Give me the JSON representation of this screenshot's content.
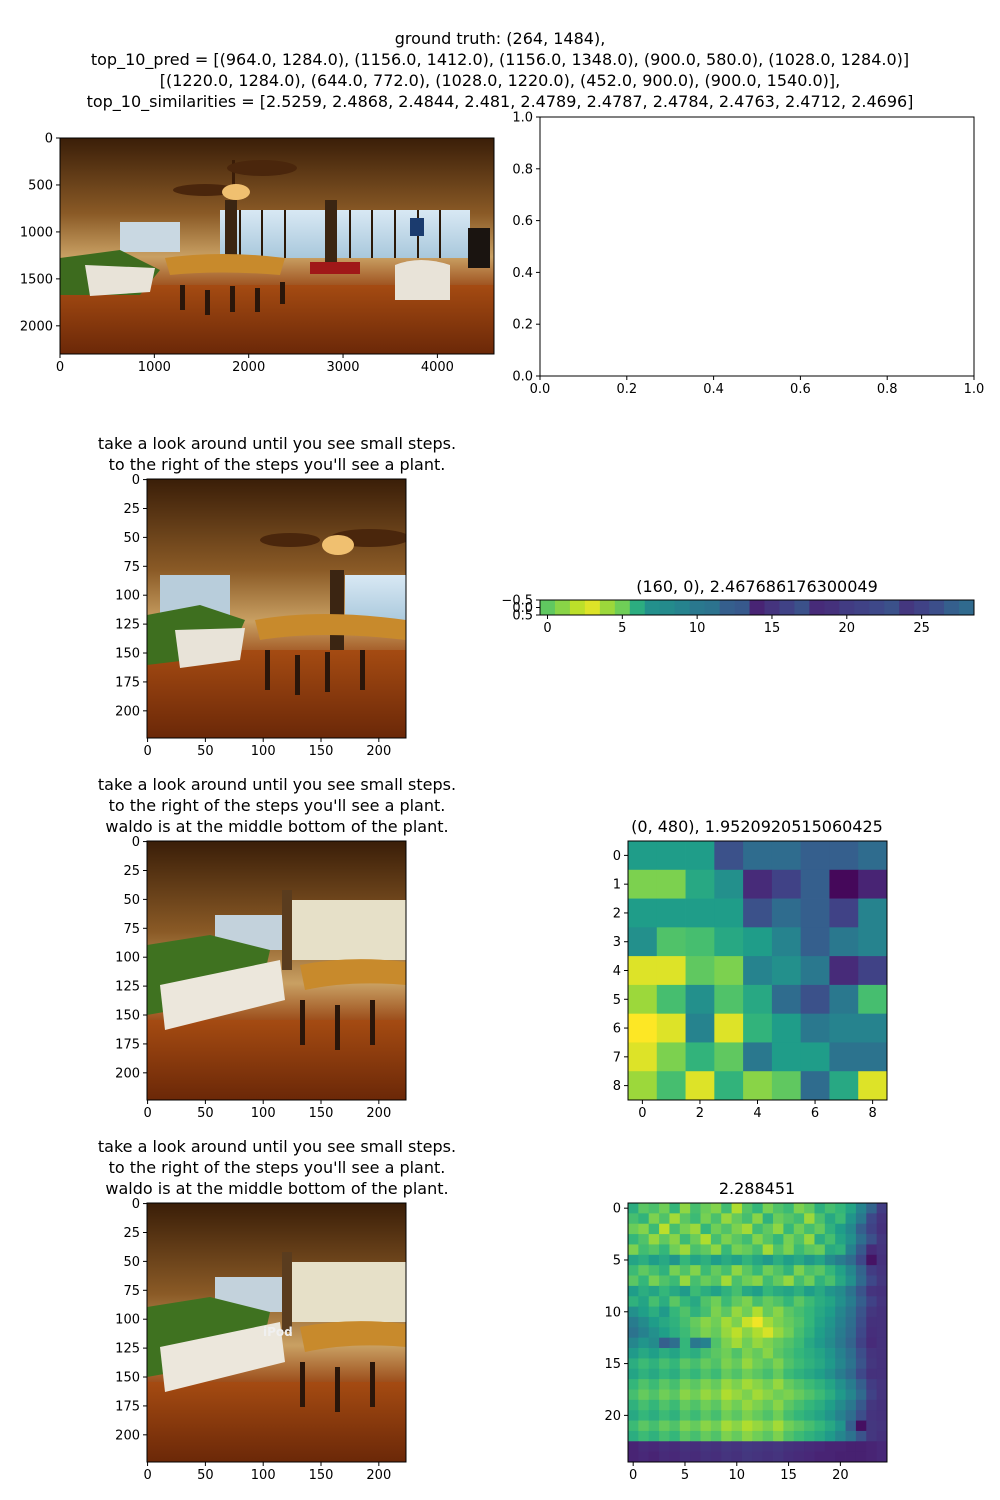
{
  "figure_title": {
    "line1": "ground truth: (264, 1484),",
    "line2": "top_10_pred = [(964.0, 1284.0), (1156.0, 1412.0), (1156.0, 1348.0), (900.0, 580.0), (1028.0, 1284.0)]",
    "line3": "[(1220.0, 1284.0), (644.0, 772.0), (1028.0, 1220.0), (452.0, 900.0), (900.0, 1540.0)],",
    "line4": "top_10_similarities = [2.5259, 2.4868, 2.4844, 2.481, 2.4789, 2.4787, 2.4784, 2.4763, 2.4712, 2.4696]"
  },
  "panels": {
    "panorama": {
      "title": "",
      "x_ticks": [
        "0",
        "1000",
        "2000",
        "3000",
        "4000"
      ],
      "y_ticks": [
        "0",
        "500",
        "1000",
        "1500",
        "2000"
      ]
    },
    "empty_axes": {
      "title": "",
      "x_ticks": [
        "0.0",
        "0.2",
        "0.4",
        "0.6",
        "0.8",
        "1.0"
      ],
      "y_ticks": [
        "0.0",
        "0.2",
        "0.4",
        "0.6",
        "0.8",
        "1.0"
      ]
    },
    "crop1": {
      "title_line1": "take a look around until you see small steps.",
      "title_line2": "to the right of the steps you'll see a plant.",
      "x_ticks": [
        "0",
        "50",
        "100",
        "150",
        "200"
      ],
      "y_ticks": [
        "0",
        "25",
        "50",
        "75",
        "100",
        "125",
        "150",
        "175",
        "200"
      ]
    },
    "crop2": {
      "title_line1": "take a look around until you see small steps.",
      "title_line2": "to the right of the steps you'll see a plant.",
      "title_line3": "waldo is at the middle bottom of the plant.",
      "x_ticks": [
        "0",
        "50",
        "100",
        "150",
        "200"
      ],
      "y_ticks": [
        "0",
        "25",
        "50",
        "75",
        "100",
        "125",
        "150",
        "175",
        "200"
      ]
    },
    "crop3": {
      "title_line1": "take a look around until you see small steps.",
      "title_line2": "to the right of the steps you'll see a plant.",
      "title_line3": "waldo is at the middle bottom of the plant.",
      "overlay_text": "iPod",
      "x_ticks": [
        "0",
        "50",
        "100",
        "150",
        "200"
      ],
      "y_ticks": [
        "0",
        "25",
        "50",
        "75",
        "100",
        "125",
        "150",
        "175",
        "200"
      ]
    }
  },
  "colormap": "viridis",
  "chart_data": [
    {
      "type": "heatmap",
      "title": "(160, 0), 2.467686176300049",
      "rows": 1,
      "cols": 29,
      "x_ticks": [
        "0",
        "5",
        "10",
        "15",
        "20",
        "25"
      ],
      "y_ticks": [
        "−0.5",
        "0.0",
        "0.5"
      ],
      "values": [
        [
          0.75,
          0.82,
          0.9,
          0.95,
          0.85,
          0.78,
          0.62,
          0.5,
          0.48,
          0.45,
          0.4,
          0.38,
          0.3,
          0.28,
          0.1,
          0.15,
          0.2,
          0.25,
          0.12,
          0.14,
          0.18,
          0.2,
          0.22,
          0.25,
          0.16,
          0.2,
          0.24,
          0.3,
          0.34
        ]
      ]
    },
    {
      "type": "heatmap",
      "title": "(0, 480), 1.9520920515060425",
      "rows": 9,
      "cols": 9,
      "x_ticks": [
        "0",
        "2",
        "4",
        "6",
        "8"
      ],
      "y_ticks": [
        "0",
        "1",
        "2",
        "3",
        "4",
        "5",
        "6",
        "7",
        "8"
      ],
      "values": [
        [
          0.55,
          0.55,
          0.55,
          0.25,
          0.35,
          0.35,
          0.3,
          0.3,
          0.35
        ],
        [
          0.8,
          0.8,
          0.6,
          0.5,
          0.12,
          0.2,
          0.3,
          0.02,
          0.1
        ],
        [
          0.55,
          0.55,
          0.55,
          0.55,
          0.25,
          0.35,
          0.3,
          0.2,
          0.45
        ],
        [
          0.5,
          0.72,
          0.7,
          0.6,
          0.55,
          0.45,
          0.3,
          0.4,
          0.45
        ],
        [
          0.95,
          0.95,
          0.75,
          0.8,
          0.45,
          0.5,
          0.4,
          0.12,
          0.2
        ],
        [
          0.85,
          0.7,
          0.5,
          0.72,
          0.6,
          0.35,
          0.25,
          0.4,
          0.7
        ],
        [
          1.0,
          0.95,
          0.45,
          0.95,
          0.65,
          0.55,
          0.4,
          0.45,
          0.45
        ],
        [
          0.95,
          0.8,
          0.65,
          0.75,
          0.4,
          0.55,
          0.55,
          0.38,
          0.38
        ],
        [
          0.85,
          0.7,
          0.95,
          0.65,
          0.82,
          0.75,
          0.35,
          0.6,
          0.95
        ]
      ]
    },
    {
      "type": "heatmap",
      "title": "2.288451",
      "rows": 25,
      "cols": 25,
      "x_ticks": [
        "0",
        "5",
        "10",
        "15",
        "20"
      ],
      "y_ticks": [
        "0",
        "5",
        "10",
        "15",
        "20"
      ],
      "values": [
        [
          0.62,
          0.74,
          0.71,
          0.78,
          0.66,
          0.83,
          0.7,
          0.77,
          0.81,
          0.69,
          0.88,
          0.73,
          0.66,
          0.79,
          0.72,
          0.68,
          0.8,
          0.75,
          0.63,
          0.7,
          0.66,
          0.58,
          0.45,
          0.32,
          0.18
        ],
        [
          0.7,
          0.65,
          0.8,
          0.72,
          0.86,
          0.74,
          0.68,
          0.79,
          0.71,
          0.84,
          0.76,
          0.7,
          0.82,
          0.64,
          0.77,
          0.73,
          0.69,
          0.85,
          0.71,
          0.6,
          0.68,
          0.52,
          0.4,
          0.22,
          0.15
        ],
        [
          0.77,
          0.81,
          0.68,
          0.9,
          0.7,
          0.79,
          0.85,
          0.66,
          0.78,
          0.72,
          0.8,
          0.86,
          0.69,
          0.75,
          0.83,
          0.67,
          0.78,
          0.7,
          0.76,
          0.64,
          0.55,
          0.47,
          0.3,
          0.2,
          0.14
        ],
        [
          0.66,
          0.72,
          0.84,
          0.75,
          0.82,
          0.68,
          0.77,
          0.88,
          0.7,
          0.8,
          0.74,
          0.69,
          0.81,
          0.73,
          0.66,
          0.79,
          0.72,
          0.84,
          0.62,
          0.7,
          0.58,
          0.5,
          0.36,
          0.25,
          0.16
        ],
        [
          0.8,
          0.69,
          0.73,
          0.66,
          0.78,
          0.85,
          0.71,
          0.75,
          0.83,
          0.67,
          0.79,
          0.76,
          0.7,
          0.86,
          0.72,
          0.8,
          0.68,
          0.74,
          0.77,
          0.61,
          0.64,
          0.44,
          0.28,
          0.12,
          0.15
        ],
        [
          0.58,
          0.62,
          0.55,
          0.6,
          0.52,
          0.66,
          0.58,
          0.63,
          0.55,
          0.61,
          0.57,
          0.65,
          0.59,
          0.54,
          0.62,
          0.56,
          0.6,
          0.53,
          0.58,
          0.48,
          0.42,
          0.35,
          0.22,
          0.05,
          0.14
        ],
        [
          0.68,
          0.75,
          0.7,
          0.64,
          0.79,
          0.72,
          0.81,
          0.68,
          0.76,
          0.7,
          0.83,
          0.74,
          0.67,
          0.78,
          0.72,
          0.65,
          0.8,
          0.71,
          0.74,
          0.66,
          0.57,
          0.46,
          0.32,
          0.18,
          0.15
        ],
        [
          0.74,
          0.66,
          0.79,
          0.72,
          0.68,
          0.84,
          0.7,
          0.77,
          0.73,
          0.86,
          0.71,
          0.78,
          0.82,
          0.69,
          0.76,
          0.84,
          0.7,
          0.78,
          0.65,
          0.71,
          0.6,
          0.5,
          0.34,
          0.22,
          0.16
        ],
        [
          0.55,
          0.62,
          0.58,
          0.66,
          0.6,
          0.54,
          0.68,
          0.62,
          0.57,
          0.64,
          0.7,
          0.6,
          0.56,
          0.66,
          0.61,
          0.58,
          0.63,
          0.55,
          0.6,
          0.52,
          0.48,
          0.38,
          0.26,
          0.15,
          0.14
        ],
        [
          0.64,
          0.58,
          0.7,
          0.62,
          0.74,
          0.66,
          0.6,
          0.72,
          0.78,
          0.68,
          0.75,
          0.8,
          0.7,
          0.76,
          0.72,
          0.66,
          0.74,
          0.68,
          0.62,
          0.58,
          0.5,
          0.42,
          0.3,
          0.2,
          0.15
        ],
        [
          0.5,
          0.56,
          0.62,
          0.54,
          0.66,
          0.72,
          0.64,
          0.7,
          0.8,
          0.74,
          0.84,
          0.78,
          0.88,
          0.76,
          0.82,
          0.74,
          0.7,
          0.66,
          0.6,
          0.55,
          0.46,
          0.38,
          0.26,
          0.16,
          0.14
        ],
        [
          0.42,
          0.48,
          0.55,
          0.6,
          0.64,
          0.7,
          0.76,
          0.82,
          0.78,
          0.86,
          0.8,
          0.92,
          0.98,
          0.86,
          0.8,
          0.76,
          0.72,
          0.66,
          0.58,
          0.52,
          0.44,
          0.36,
          0.24,
          0.14,
          0.14
        ],
        [
          0.38,
          0.44,
          0.5,
          0.56,
          0.62,
          0.68,
          0.74,
          0.8,
          0.76,
          0.84,
          0.9,
          0.82,
          0.88,
          0.94,
          0.84,
          0.78,
          0.7,
          0.64,
          0.56,
          0.5,
          0.42,
          0.34,
          0.22,
          0.13,
          0.14
        ],
        [
          0.46,
          0.52,
          0.48,
          0.3,
          0.36,
          0.66,
          0.4,
          0.44,
          0.72,
          0.8,
          0.86,
          0.78,
          0.84,
          0.8,
          0.76,
          0.72,
          0.68,
          0.6,
          0.54,
          0.48,
          0.4,
          0.32,
          0.2,
          0.12,
          0.14
        ],
        [
          0.54,
          0.6,
          0.56,
          0.62,
          0.58,
          0.66,
          0.62,
          0.7,
          0.74,
          0.78,
          0.72,
          0.8,
          0.76,
          0.82,
          0.74,
          0.7,
          0.66,
          0.62,
          0.58,
          0.52,
          0.44,
          0.36,
          0.24,
          0.15,
          0.14
        ],
        [
          0.62,
          0.68,
          0.64,
          0.7,
          0.66,
          0.74,
          0.7,
          0.76,
          0.72,
          0.8,
          0.76,
          0.84,
          0.78,
          0.74,
          0.8,
          0.72,
          0.68,
          0.64,
          0.6,
          0.54,
          0.46,
          0.38,
          0.26,
          0.16,
          0.14
        ],
        [
          0.58,
          0.64,
          0.6,
          0.66,
          0.62,
          0.7,
          0.66,
          0.72,
          0.68,
          0.76,
          0.72,
          0.78,
          0.74,
          0.7,
          0.76,
          0.68,
          0.64,
          0.6,
          0.56,
          0.5,
          0.42,
          0.34,
          0.22,
          0.14,
          0.14
        ],
        [
          0.66,
          0.72,
          0.68,
          0.74,
          0.7,
          0.78,
          0.74,
          0.8,
          0.76,
          0.84,
          0.8,
          0.86,
          0.82,
          0.78,
          0.84,
          0.76,
          0.72,
          0.68,
          0.64,
          0.58,
          0.5,
          0.42,
          0.3,
          0.18,
          0.15
        ],
        [
          0.7,
          0.76,
          0.72,
          0.78,
          0.74,
          0.82,
          0.78,
          0.84,
          0.8,
          0.88,
          0.84,
          0.8,
          0.86,
          0.82,
          0.78,
          0.8,
          0.76,
          0.72,
          0.68,
          0.62,
          0.54,
          0.46,
          0.34,
          0.2,
          0.15
        ],
        [
          0.64,
          0.7,
          0.66,
          0.72,
          0.68,
          0.76,
          0.72,
          0.78,
          0.74,
          0.82,
          0.78,
          0.84,
          0.8,
          0.76,
          0.82,
          0.74,
          0.7,
          0.66,
          0.62,
          0.56,
          0.48,
          0.4,
          0.28,
          0.16,
          0.14
        ],
        [
          0.6,
          0.66,
          0.62,
          0.68,
          0.64,
          0.72,
          0.68,
          0.74,
          0.7,
          0.78,
          0.74,
          0.8,
          0.76,
          0.72,
          0.78,
          0.7,
          0.66,
          0.62,
          0.58,
          0.52,
          0.44,
          0.36,
          0.24,
          0.15,
          0.14
        ],
        [
          0.68,
          0.74,
          0.7,
          0.76,
          0.72,
          0.8,
          0.76,
          0.82,
          0.78,
          0.86,
          0.82,
          0.88,
          0.84,
          0.8,
          0.86,
          0.78,
          0.74,
          0.7,
          0.66,
          0.6,
          0.52,
          0.3,
          0.04,
          0.16,
          0.15
        ],
        [
          0.62,
          0.68,
          0.64,
          0.7,
          0.66,
          0.74,
          0.7,
          0.76,
          0.72,
          0.8,
          0.76,
          0.82,
          0.78,
          0.74,
          0.8,
          0.72,
          0.68,
          0.64,
          0.6,
          0.54,
          0.46,
          0.38,
          0.26,
          0.16,
          0.14
        ],
        [
          0.1,
          0.12,
          0.11,
          0.13,
          0.12,
          0.14,
          0.13,
          0.15,
          0.14,
          0.16,
          0.15,
          0.17,
          0.16,
          0.15,
          0.16,
          0.14,
          0.13,
          0.12,
          0.11,
          0.1,
          0.1,
          0.09,
          0.09,
          0.1,
          0.11
        ],
        [
          0.1,
          0.11,
          0.1,
          0.12,
          0.11,
          0.13,
          0.12,
          0.14,
          0.13,
          0.15,
          0.14,
          0.16,
          0.15,
          0.14,
          0.15,
          0.13,
          0.12,
          0.11,
          0.1,
          0.1,
          0.09,
          0.09,
          0.09,
          0.1,
          0.11
        ]
      ]
    }
  ]
}
